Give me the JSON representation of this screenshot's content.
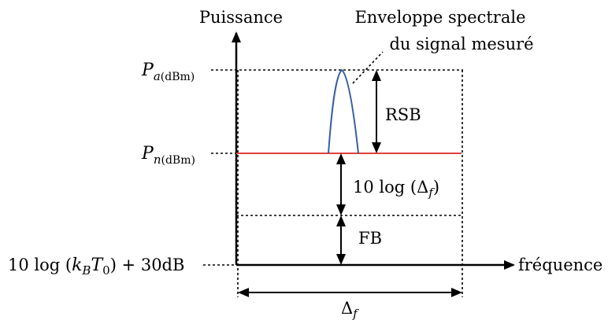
{
  "axes": {
    "y_label": "Puissance",
    "x_label": "fréquence"
  },
  "levels": {
    "pa": {
      "symbol": "P",
      "sub_italic": "a",
      "sub_unit": "(dBm)"
    },
    "pn": {
      "symbol": "P",
      "sub_italic": "n",
      "sub_unit": "(dBm)"
    },
    "floor": "10 log (k_B T_0) + 30dB"
  },
  "floor_parts": {
    "prefix": "10 log (",
    "k": "k",
    "k_sub": "B",
    "t": "T",
    "t_sub": "0",
    "suffix": ") + 30dB"
  },
  "annotations": {
    "envelope_line1": "Enveloppe spectrale",
    "envelope_line2": "du signal mesuré",
    "rsb": "RSB",
    "bw_term": {
      "prefix": "10 log (",
      "delta": "Δ",
      "sub": "f",
      "suffix": ")"
    },
    "fb": "FB",
    "bandwidth": {
      "delta": "Δ",
      "sub": "f"
    }
  },
  "colors": {
    "envelope": "#3a5fa0",
    "noise_level": "#e0403a",
    "lines": "#000000"
  }
}
